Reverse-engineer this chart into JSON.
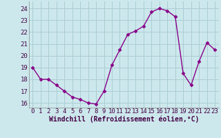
{
  "x": [
    0,
    1,
    2,
    3,
    4,
    5,
    6,
    7,
    8,
    9,
    10,
    11,
    12,
    13,
    14,
    15,
    16,
    17,
    18,
    19,
    20,
    21,
    22,
    23
  ],
  "y": [
    19.0,
    18.0,
    18.0,
    17.5,
    17.0,
    16.5,
    16.3,
    16.0,
    15.9,
    17.0,
    19.2,
    20.5,
    21.8,
    22.1,
    22.5,
    23.7,
    24.0,
    23.8,
    23.3,
    18.5,
    17.5,
    19.5,
    21.1,
    20.5
  ],
  "line_color": "#880088",
  "marker": "D",
  "marker_size": 2.5,
  "bg_color": "#cce8ec",
  "grid_color": "#aacdd4",
  "xlabel": "Windchill (Refroidissement éolien,°C)",
  "xlabel_fontsize": 7,
  "ylabel_ticks": [
    16,
    17,
    18,
    19,
    20,
    21,
    22,
    23,
    24
  ],
  "xlim": [
    -0.5,
    23.5
  ],
  "ylim": [
    15.6,
    24.6
  ],
  "tick_fontsize": 6.5
}
